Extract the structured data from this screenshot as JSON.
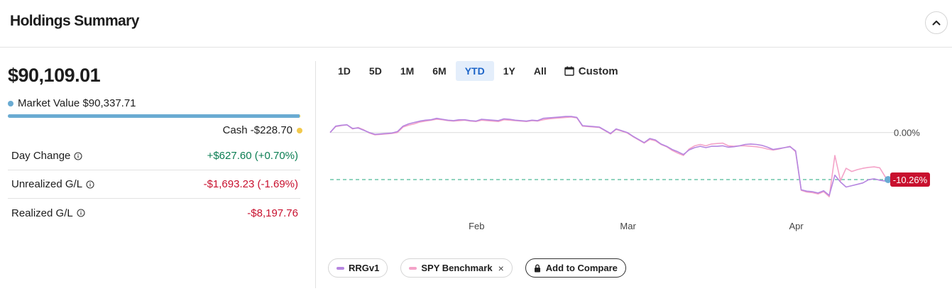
{
  "header": {
    "title": "Holdings Summary"
  },
  "summary": {
    "total_value": "$90,109.01",
    "market_value_label": "Market Value",
    "market_value": "$90,337.71",
    "market_value_fraction": 0.9975,
    "cash_label": "Cash",
    "cash_value": "-$228.70",
    "colors": {
      "market": "#6aabd2",
      "cash": "#f2c94c",
      "positive": "#0a7d52",
      "negative": "#c8102e"
    },
    "rows": [
      {
        "label": "Day Change",
        "value": "+$627.60 (+0.70%)",
        "tone": "positive"
      },
      {
        "label": "Unrealized G/L",
        "value": "-$1,693.23 (-1.69%)",
        "tone": "negative"
      },
      {
        "label": "Realized G/L",
        "value": "-$8,197.76",
        "tone": "negative"
      }
    ]
  },
  "ranges": [
    "1D",
    "5D",
    "1M",
    "6M",
    "YTD",
    "1Y",
    "All"
  ],
  "active_range": "YTD",
  "custom_label": "Custom",
  "chart_data": {
    "type": "line",
    "x_tick_labels": [
      "Feb",
      "Mar",
      "Apr"
    ],
    "reference_line_label": "0.00%",
    "current_value_label": "-10.26%",
    "current_value": -10.26,
    "ylim": [
      -16,
      6
    ],
    "series": [
      {
        "name": "RRGv1",
        "color": "#b686e0",
        "values": [
          0,
          1.4,
          1.6,
          1.7,
          0.9,
          1.0,
          0.5,
          0,
          -0.4,
          -0.3,
          -0.2,
          -0.1,
          0.2,
          1.4,
          1.9,
          2.2,
          2.5,
          2.7,
          2.8,
          3.1,
          2.9,
          2.7,
          2.6,
          2.8,
          2.8,
          2.6,
          2.5,
          2.9,
          2.8,
          2.7,
          2.6,
          3.0,
          2.9,
          2.7,
          2.6,
          2.5,
          2.7,
          2.6,
          3.1,
          3.2,
          3.3,
          3.4,
          3.5,
          3.5,
          3.3,
          1.5,
          1.4,
          1.3,
          1.2,
          0.5,
          -0.2,
          0.8,
          0.4,
          0,
          -0.8,
          -1.5,
          -2.2,
          -1.3,
          -1.6,
          -2.5,
          -3.0,
          -3.7,
          -4.2,
          -4.8,
          -3.8,
          -3.3,
          -3.0,
          -3.3,
          -3.0,
          -3.0,
          -2.9,
          -3.2,
          -3.1,
          -2.9,
          -2.6,
          -2.5,
          -2.6,
          -2.8,
          -3.2,
          -3.7,
          -3.5,
          -3.3,
          -3.1,
          -4.0,
          -12.5,
          -12.8,
          -12.9,
          -13.2,
          -12.7,
          -13.7,
          -9.3,
          -10.8,
          -11.9,
          -11.6,
          -11.3,
          -11.0,
          -10.3,
          -10.1,
          -10.4,
          -10.6,
          -10.26
        ]
      },
      {
        "name": "SPY Benchmark",
        "color": "#f4a3c8",
        "values": [
          0,
          1.3,
          1.5,
          1.7,
          0.8,
          1.1,
          0.6,
          -0.1,
          -0.5,
          -0.4,
          -0.3,
          -0.2,
          0,
          1.2,
          1.6,
          1.9,
          2.3,
          2.5,
          2.7,
          2.9,
          2.8,
          2.6,
          2.5,
          2.6,
          2.7,
          2.5,
          2.4,
          2.7,
          2.6,
          2.5,
          2.4,
          2.8,
          2.7,
          2.6,
          2.5,
          2.4,
          2.6,
          2.5,
          2.8,
          3.0,
          3.1,
          3.2,
          3.3,
          3.4,
          3.2,
          1.4,
          1.3,
          1.2,
          1.1,
          0.4,
          -0.3,
          0.7,
          0.3,
          -0.1,
          -0.9,
          -1.6,
          -2.3,
          -1.5,
          -1.8,
          -2.6,
          -3.1,
          -3.9,
          -4.5,
          -5.0,
          -3.6,
          -2.9,
          -2.6,
          -2.9,
          -2.5,
          -2.4,
          -2.3,
          -2.9,
          -3.0,
          -2.9,
          -2.9,
          -3.0,
          -3.1,
          -3.3,
          -3.6,
          -3.8,
          -3.6,
          -3.3,
          -3.0,
          -4.2,
          -12.6,
          -13.0,
          -13.1,
          -13.4,
          -12.9,
          -14.0,
          -5.0,
          -10.5,
          -7.8,
          -8.5,
          -8.1,
          -7.8,
          -7.6,
          -7.5,
          -7.7,
          -9.7,
          -10.2
        ]
      }
    ]
  },
  "legend": {
    "items": [
      {
        "label": "RRGv1",
        "color": "#b686e0",
        "removable": false
      },
      {
        "label": "SPY Benchmark",
        "color": "#f4a3c8",
        "removable": true
      }
    ],
    "remove_symbol": "×",
    "compare_label": "Add to Compare"
  }
}
